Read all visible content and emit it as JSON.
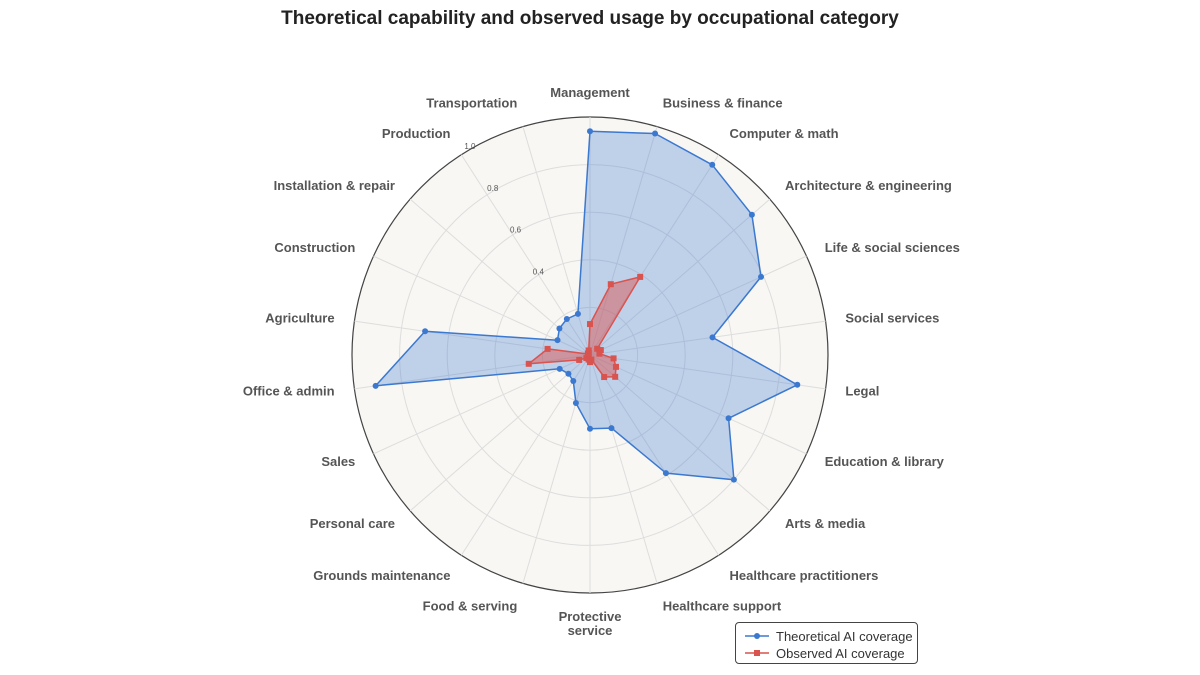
{
  "colors": {
    "theoretical": "#3b78cf",
    "observed": "#d9534f",
    "panel": "#f8f7f4",
    "grid": "#dddddd"
  },
  "chart_data": {
    "type": "radar",
    "title": "Theoretical capability and observed usage by occupational category",
    "categories": [
      "Management",
      "Business & finance",
      "Computer & math",
      "Architecture & engineering",
      "Life & social sciences",
      "Social services",
      "Legal",
      "Education & library",
      "Arts & media",
      "Healthcare practitioners",
      "Healthcare support",
      "Protective service",
      "Food & serving",
      "Grounds maintenance",
      "Personal care",
      "Sales",
      "Office & admin",
      "Agriculture",
      "Construction",
      "Installation & repair",
      "Production",
      "Transportation"
    ],
    "radial_ticks": [
      0.4,
      0.6,
      0.8,
      1.0
    ],
    "rlim": [
      0,
      1.0
    ],
    "series": [
      {
        "name": "Theoretical AI coverage",
        "values": [
          0.94,
          0.97,
          0.95,
          0.9,
          0.79,
          0.52,
          0.88,
          0.64,
          0.8,
          0.59,
          0.32,
          0.31,
          0.21,
          0.13,
          0.12,
          0.14,
          0.91,
          0.7,
          0.15,
          0.17,
          0.18,
          0.18
        ]
      },
      {
        "name": "Observed AI coverage",
        "values": [
          0.13,
          0.31,
          0.39,
          0.04,
          0.05,
          0.04,
          0.1,
          0.12,
          0.14,
          0.11,
          0.02,
          0.03,
          0.02,
          0.01,
          0.02,
          0.05,
          0.26,
          0.18,
          0.01,
          0.01,
          0.01,
          0.02
        ]
      }
    ],
    "legend": {
      "position": "bottom-right",
      "items": [
        "Theoretical AI coverage",
        "Observed AI coverage"
      ]
    },
    "grid": true
  }
}
